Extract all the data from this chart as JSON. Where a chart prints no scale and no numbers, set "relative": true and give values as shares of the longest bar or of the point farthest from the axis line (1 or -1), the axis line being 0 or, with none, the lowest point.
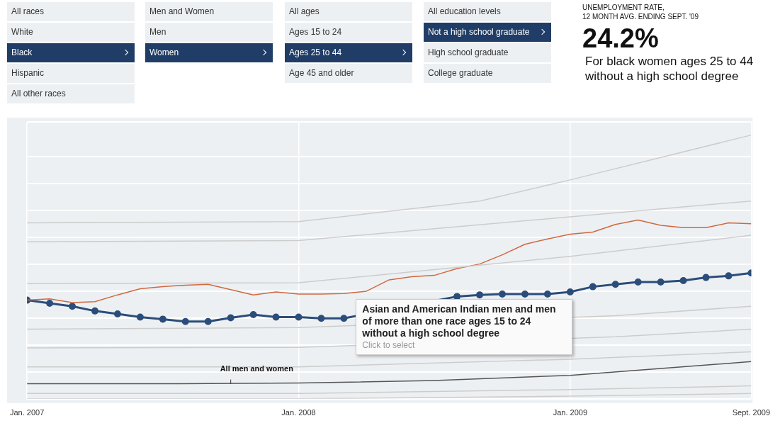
{
  "chart_data": [
    {
      "type": "other",
      "annotations": [
        "All races",
        "White",
        "Black",
        "Hispanic",
        "All other races",
        "Men and Women",
        "Men",
        "Women",
        "All ages",
        "Ages 15 to 24",
        "Ages 25 to 44",
        "Age 45 and older",
        "All education levels",
        "Not a high school graduate",
        "High school graduate",
        "College graduate"
      ]
    },
    {
      "type": "other",
      "title": "UNEMPLOYMENT RATE,\n12 MONTH AVG. ENDING SEPT. '09",
      "annotations": [
        "24.2%",
        "For black women ages 25 to 44\nwithout a high school degree"
      ]
    },
    {
      "type": "line",
      "relative": true,
      "grid": true,
      "marker": "none",
      "line_style": "solid",
      "legend": false,
      "xlim": [
        "2007-01",
        "2009-09"
      ],
      "xticks": [
        {
          "value": "2007-01",
          "label": "Jan. 2007"
        },
        {
          "value": "2008-01",
          "label": "Jan. 2008"
        },
        {
          "value": "2009-01",
          "label": "Jan. 2009"
        },
        {
          "value": "2009-09",
          "label": "Sept. 2009"
        }
      ],
      "x": [
        "2007-01",
        "2007-02",
        "2007-03",
        "2007-04",
        "2007-05",
        "2007-06",
        "2007-07",
        "2007-08",
        "2007-09",
        "2007-10",
        "2007-11",
        "2007-12",
        "2008-01",
        "2008-02",
        "2008-03",
        "2008-04",
        "2008-05",
        "2008-06",
        "2008-07",
        "2008-08",
        "2008-09",
        "2008-10",
        "2008-11",
        "2008-12",
        "2009-01",
        "2009-02",
        "2009-03",
        "2009-04",
        "2009-05",
        "2009-06",
        "2009-07",
        "2009-08",
        "2009-09"
      ],
      "series": [
        {
          "color": "#cccccc",
          "x": [
            "2007-01",
            "2008-01",
            "2008-09",
            "2009-01",
            "2009-09"
          ],
          "values": [
            0.667,
            0.672,
            0.75,
            0.83,
            1.0
          ]
        },
        {
          "color": "#cccccc",
          "x": [
            "2007-01",
            "2008-01",
            "2009-01",
            "2009-09"
          ],
          "values": [
            0.595,
            0.6,
            0.69,
            0.75
          ]
        },
        {
          "color": "#cccccc",
          "x": [
            "2007-01",
            "2008-01",
            "2009-01",
            "2009-09"
          ],
          "values": [
            0.437,
            0.44,
            0.54,
            0.62
          ]
        },
        {
          "color": "#cccccc",
          "x": [
            "2007-01",
            "2008-01",
            "2009-03",
            "2009-09"
          ],
          "values": [
            0.264,
            0.27,
            0.315,
            0.351
          ]
        },
        {
          "color": "#cccccc",
          "x": [
            "2007-01",
            "2008-01",
            "2009-03",
            "2009-09"
          ],
          "values": [
            0.193,
            0.195,
            0.235,
            0.264
          ]
        },
        {
          "color": "#cccccc",
          "x": [
            "2007-01",
            "2008-01",
            "2009-01",
            "2009-09"
          ],
          "values": [
            0.121,
            0.121,
            0.15,
            0.178
          ]
        },
        {
          "color": "#cccccc",
          "x": [
            "2007-01",
            "2008-01",
            "2009-01",
            "2009-09"
          ],
          "values": [
            0.02,
            0.02,
            0.035,
            0.049
          ]
        },
        {
          "color": "#cccccc",
          "x": [
            "2007-01",
            "2008-01",
            "2009-01",
            "2009-09"
          ],
          "values": [
            0,
            0,
            0.01,
            0.02
          ]
        },
        {
          "color": "#555555",
          "x": [
            "2007-01",
            "2007-07",
            "2008-01",
            "2008-07",
            "2009-01",
            "2009-05",
            "2009-09"
          ],
          "values": [
            0.057,
            0.057,
            0.06,
            0.069,
            0.089,
            0.115,
            0.141
          ]
        },
        {
          "color": "#d0683f",
          "values": [
            0.374,
            0.379,
            0.365,
            0.368,
            0.394,
            0.417,
            0.425,
            0.431,
            0.434,
            0.414,
            0.394,
            0.405,
            0.397,
            0.397,
            0.399,
            0.408,
            0.451,
            0.463,
            0.468,
            0.494,
            0.511,
            0.546,
            0.586,
            0.606,
            0.624,
            0.632,
            0.661,
            0.678,
            0.658,
            0.649,
            0.649,
            0.667,
            0.664
          ]
        },
        {
          "color": "#2b4d7a",
          "marker": "circle",
          "values": [
            0.374,
            0.362,
            0.351,
            0.333,
            0.322,
            0.31,
            0.302,
            0.293,
            0.293,
            0.307,
            0.319,
            0.31,
            0.31,
            0.305,
            0.305,
            null,
            null,
            null,
            null,
            0.388,
            0.394,
            0.397,
            0.397,
            0.397,
            0.405,
            0.425,
            0.434,
            0.443,
            0.443,
            0.448,
            0.46,
            0.466,
            0.477
          ]
        }
      ],
      "annotations": [
        {
          "text": "All men and women",
          "x": "2007-10",
          "y": 0.057
        },
        {
          "text": "Asian and American Indian men and men of more than one race ages 15 to 24 without a high school degree",
          "x": "2008-04",
          "y": 0.305
        },
        "Click to select"
      ]
    }
  ]
}
